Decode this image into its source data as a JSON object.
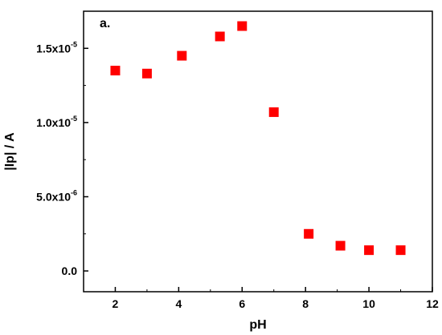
{
  "chart_data": {
    "type": "scatter",
    "title": "",
    "panel_label": "a.",
    "xlabel": "pH",
    "ylabel": "|Ip| / A",
    "xlim": [
      1,
      12
    ],
    "ylim": [
      -1.4e-06,
      1.75e-05
    ],
    "x_ticks": [
      2,
      4,
      6,
      8,
      10,
      12
    ],
    "x_tick_labels": [
      "2",
      "4",
      "6",
      "8",
      "10",
      "12"
    ],
    "y_ticks": [
      0,
      5e-06,
      1e-05,
      1.5e-05
    ],
    "y_tick_labels": [
      {
        "mantissa": "0.0",
        "exponent": ""
      },
      {
        "mantissa": "5.0x10",
        "exponent": "-6"
      },
      {
        "mantissa": "1.0x10",
        "exponent": "-5"
      },
      {
        "mantissa": "1.5x10",
        "exponent": "-5"
      }
    ],
    "marker": "square",
    "marker_color": "#ff0000",
    "grid": false,
    "series": [
      {
        "x": [
          2,
          3,
          4.1,
          5.3,
          6,
          7,
          8.1,
          9.1,
          10,
          11
        ],
        "y": [
          1.35e-05,
          1.33e-05,
          1.45e-05,
          1.58e-05,
          1.65e-05,
          1.07e-05,
          2.5e-06,
          1.7e-06,
          1.4e-06,
          1.4e-06
        ]
      }
    ]
  }
}
